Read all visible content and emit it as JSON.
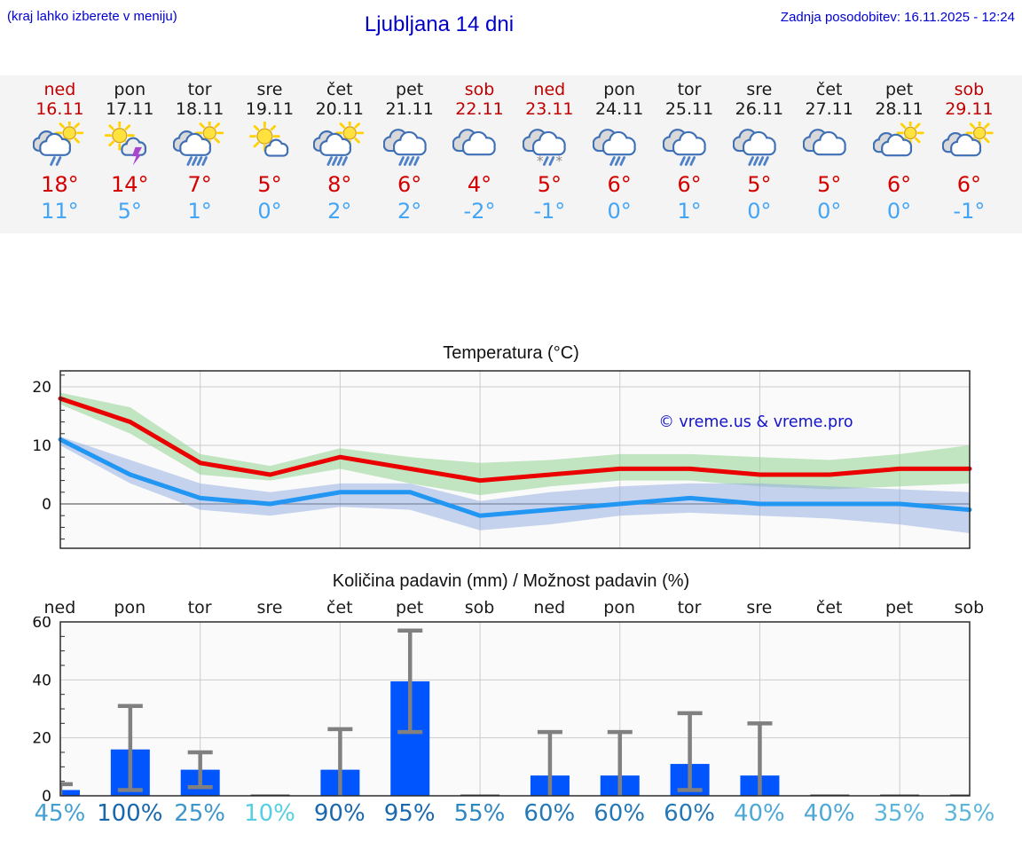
{
  "header": {
    "location_hint": "(kraj lahko izberete v meniju)",
    "title": "Ljubljana 14 dni",
    "last_update": "Zadnja posodobitev: 16.11.2025 - 12:24"
  },
  "colors": {
    "header_blue": "#0000d0",
    "weekend_red": "#c00000",
    "weekday_black": "#1a1a1a",
    "tmax_red": "#d40000",
    "tmin_blue": "#42a5f5",
    "line_red": "#eb0000",
    "line_blue": "#2196f3",
    "band_green": "#8fd48f",
    "band_blue": "#8fa9e0",
    "bar_blue": "#0055ff",
    "error_gray": "#808080",
    "cloud_stroke": "#3f6fb5",
    "rain_blue": "#4f81c8",
    "plot_bg": "#fafafa",
    "grid_gray": "#cccccc",
    "frame_dark": "#2b2b2b",
    "watermark_blue": "#1313cb"
  },
  "forecast_days": [
    {
      "day": "ned",
      "date": "16.11",
      "weekend": true,
      "icon": "sun-cloud-rain2",
      "tmax": "18°",
      "tmin": "11°"
    },
    {
      "day": "pon",
      "date": "17.11",
      "weekend": false,
      "icon": "sun-storm",
      "tmax": "14°",
      "tmin": "5°"
    },
    {
      "day": "tor",
      "date": "18.11",
      "weekend": false,
      "icon": "sun-cloud-rain4",
      "tmax": "7°",
      "tmin": "1°"
    },
    {
      "day": "sre",
      "date": "19.11",
      "weekend": false,
      "icon": "sun-smallcloud",
      "tmax": "5°",
      "tmin": "0°"
    },
    {
      "day": "čet",
      "date": "20.11",
      "weekend": false,
      "icon": "sun-cloud-rain4",
      "tmax": "8°",
      "tmin": "2°"
    },
    {
      "day": "pet",
      "date": "21.11",
      "weekend": false,
      "icon": "clouds-rain4",
      "tmax": "6°",
      "tmin": "2°"
    },
    {
      "day": "sob",
      "date": "22.11",
      "weekend": true,
      "icon": "clouds",
      "tmax": "4°",
      "tmin": "-2°"
    },
    {
      "day": "ned",
      "date": "23.11",
      "weekend": true,
      "icon": "clouds-sleet",
      "tmax": "5°",
      "tmin": "-1°"
    },
    {
      "day": "pon",
      "date": "24.11",
      "weekend": false,
      "icon": "clouds-rain3",
      "tmax": "6°",
      "tmin": "0°"
    },
    {
      "day": "tor",
      "date": "25.11",
      "weekend": false,
      "icon": "clouds-rain3",
      "tmax": "6°",
      "tmin": "1°"
    },
    {
      "day": "sre",
      "date": "26.11",
      "weekend": false,
      "icon": "clouds-rain4",
      "tmax": "5°",
      "tmin": "0°"
    },
    {
      "day": "čet",
      "date": "27.11",
      "weekend": false,
      "icon": "clouds",
      "tmax": "5°",
      "tmin": "0°"
    },
    {
      "day": "pet",
      "date": "28.11",
      "weekend": false,
      "icon": "sun-clouds",
      "tmax": "6°",
      "tmin": "0°"
    },
    {
      "day": "sob",
      "date": "29.11",
      "weekend": true,
      "icon": "sun-clouds",
      "tmax": "6°",
      "tmin": "-1°"
    }
  ],
  "chart_data": [
    {
      "type": "line",
      "title": "Temperatura (°C)",
      "watermark": "© vreme.us & vreme.pro",
      "yticks": [
        0,
        10,
        20
      ],
      "ylim": [
        -7.6,
        22.7
      ],
      "grid_x_day_indices": [
        2,
        4,
        6,
        8,
        10,
        12
      ],
      "series": [
        {
          "name": "max-temperature",
          "values": [
            18,
            14,
            7,
            5,
            8,
            6,
            4,
            5,
            6,
            6,
            5,
            5,
            6,
            6
          ]
        },
        {
          "name": "min-temperature",
          "values": [
            11,
            5,
            1,
            0,
            2,
            2,
            -2,
            -1,
            0,
            1,
            0,
            0,
            0,
            -1
          ]
        }
      ],
      "bands": [
        {
          "name": "max-temperature-range",
          "upper": [
            19,
            16.5,
            8.5,
            6.5,
            9.5,
            8,
            7,
            7.5,
            8.5,
            8.5,
            8,
            7.5,
            8.5,
            10
          ],
          "lower": [
            17,
            12,
            5,
            4,
            6,
            3.5,
            1.5,
            3,
            4,
            4,
            3,
            2.5,
            3,
            3.5
          ]
        },
        {
          "name": "min-temperature-range",
          "upper": [
            11.5,
            7.5,
            3.5,
            2,
            3.5,
            3.5,
            0.5,
            2,
            3,
            3.5,
            3.5,
            3,
            2.5,
            2
          ],
          "lower": [
            10,
            3.5,
            -1,
            -2,
            -0.5,
            -1,
            -4.5,
            -3.5,
            -2,
            -1.5,
            -2,
            -2.5,
            -3.5,
            -5
          ]
        }
      ]
    },
    {
      "type": "bar",
      "title": "Količina padavin (mm) / Možnost padavin (%)",
      "day_labels": [
        "ned",
        "pon",
        "tor",
        "sre",
        "čet",
        "pet",
        "sob",
        "ned",
        "pon",
        "tor",
        "sre",
        "čet",
        "pet",
        "sob"
      ],
      "yticks": [
        0,
        20,
        40,
        60
      ],
      "ylim": [
        0,
        60
      ],
      "grid_x_day_indices": [
        2,
        4,
        6,
        8,
        10,
        12
      ],
      "values": [
        2,
        16,
        9,
        0.2,
        9,
        39.5,
        0.2,
        7,
        7,
        11,
        7,
        0.2,
        0.2,
        0.3
      ],
      "error_high": [
        4,
        31,
        15,
        null,
        23,
        57,
        null,
        22,
        22,
        28.5,
        25,
        null,
        null,
        null
      ],
      "error_low": [
        0,
        2,
        3,
        null,
        0,
        22,
        null,
        0,
        0,
        2,
        0,
        null,
        null,
        null
      ],
      "probabilities": [
        {
          "label": "45%",
          "color": "#45a0d2"
        },
        {
          "label": "100%",
          "color": "#1866ac"
        },
        {
          "label": "25%",
          "color": "#3e96ca"
        },
        {
          "label": "10%",
          "color": "#55cfe2"
        },
        {
          "label": "90%",
          "color": "#1a68ae"
        },
        {
          "label": "95%",
          "color": "#1a68ae"
        },
        {
          "label": "55%",
          "color": "#2d87c0"
        },
        {
          "label": "60%",
          "color": "#2478b6"
        },
        {
          "label": "60%",
          "color": "#2478b6"
        },
        {
          "label": "60%",
          "color": "#2478b6"
        },
        {
          "label": "40%",
          "color": "#4da8d6"
        },
        {
          "label": "40%",
          "color": "#4da8d6"
        },
        {
          "label": "35%",
          "color": "#5db6da"
        },
        {
          "label": "35%",
          "color": "#5db6da"
        }
      ]
    }
  ]
}
